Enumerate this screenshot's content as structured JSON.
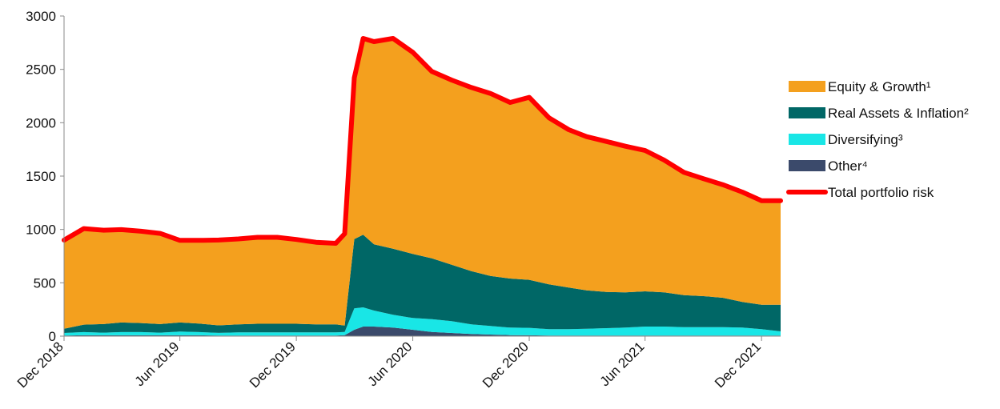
{
  "chart_data": {
    "type": "area",
    "stacked": true,
    "title": "",
    "xlabel": "",
    "ylabel": "",
    "ylim": [
      0,
      3000
    ],
    "yticks": [
      0,
      500,
      1000,
      1500,
      2000,
      2500,
      3000
    ],
    "xtick_labels": [
      "Dec 2018",
      "Jun 2019",
      "Dec 2019",
      "Jun 2020",
      "Dec 2020",
      "Jun 2021",
      "Dec 2021"
    ],
    "xtick_dates": [
      "2018-12-01",
      "2019-06-01",
      "2019-12-01",
      "2020-06-01",
      "2020-12-01",
      "2021-06-01",
      "2021-12-01"
    ],
    "x_range": [
      "2018-12-01",
      "2021-12-31"
    ],
    "grid": false,
    "legend_position": "right",
    "x": [
      "2018-12-01",
      "2019-01-01",
      "2019-02-01",
      "2019-03-01",
      "2019-04-01",
      "2019-05-01",
      "2019-06-01",
      "2019-07-01",
      "2019-08-01",
      "2019-09-01",
      "2019-10-01",
      "2019-11-01",
      "2019-12-01",
      "2020-01-01",
      "2020-02-01",
      "2020-02-15",
      "2020-03-01",
      "2020-03-15",
      "2020-04-01",
      "2020-05-01",
      "2020-06-01",
      "2020-07-01",
      "2020-08-01",
      "2020-09-01",
      "2020-10-01",
      "2020-11-01",
      "2020-12-01",
      "2021-01-01",
      "2021-02-01",
      "2021-03-01",
      "2021-04-01",
      "2021-05-01",
      "2021-06-01",
      "2021-07-01",
      "2021-08-01",
      "2021-09-01",
      "2021-10-01",
      "2021-11-01",
      "2021-12-01",
      "2021-12-31"
    ],
    "series": [
      {
        "name": "Other⁴",
        "color": "#3b4a6b",
        "values": [
          5,
          8,
          8,
          8,
          8,
          8,
          8,
          8,
          6,
          6,
          6,
          6,
          6,
          5,
          5,
          10,
          60,
          90,
          90,
          80,
          60,
          40,
          30,
          20,
          15,
          10,
          8,
          6,
          5,
          5,
          5,
          5,
          5,
          5,
          5,
          5,
          5,
          5,
          5,
          5
        ]
      },
      {
        "name": "Diversifying³",
        "color": "#19e6e6",
        "values": [
          25,
          30,
          25,
          30,
          30,
          25,
          35,
          30,
          25,
          30,
          30,
          30,
          30,
          30,
          30,
          30,
          200,
          180,
          150,
          120,
          110,
          120,
          110,
          90,
          80,
          70,
          70,
          60,
          60,
          65,
          70,
          75,
          85,
          85,
          80,
          80,
          80,
          75,
          60,
          40
        ]
      },
      {
        "name": "Real Assets & Inflation²",
        "color": "#006766",
        "values": [
          40,
          70,
          80,
          90,
          85,
          80,
          85,
          80,
          70,
          75,
          80,
          80,
          80,
          75,
          75,
          60,
          650,
          680,
          620,
          620,
          600,
          570,
          530,
          500,
          470,
          460,
          450,
          420,
          390,
          360,
          340,
          330,
          330,
          320,
          300,
          290,
          275,
          240,
          230,
          250
        ]
      },
      {
        "name": "Equity & Growth¹",
        "color": "#f4a01e",
        "values": [
          830,
          900,
          880,
          870,
          860,
          850,
          770,
          780,
          800,
          800,
          810,
          810,
          790,
          770,
          760,
          860,
          1510,
          1840,
          1900,
          1970,
          1890,
          1750,
          1730,
          1720,
          1710,
          1650,
          1710,
          1560,
          1480,
          1440,
          1410,
          1370,
          1320,
          1240,
          1150,
          1100,
          1060,
          1030,
          975,
          975
        ]
      }
    ],
    "total": {
      "name": "Total portfolio risk",
      "color": "#ff0000",
      "values": [
        900,
        1008,
        993,
        998,
        983,
        963,
        898,
        898,
        901,
        911,
        926,
        926,
        906,
        880,
        870,
        960,
        2420,
        2790,
        2760,
        2790,
        2660,
        2480,
        2400,
        2330,
        2275,
        2190,
        2238,
        2046,
        1935,
        1870,
        1825,
        1780,
        1740,
        1650,
        1535,
        1475,
        1420,
        1350,
        1270,
        1270
      ]
    }
  }
}
